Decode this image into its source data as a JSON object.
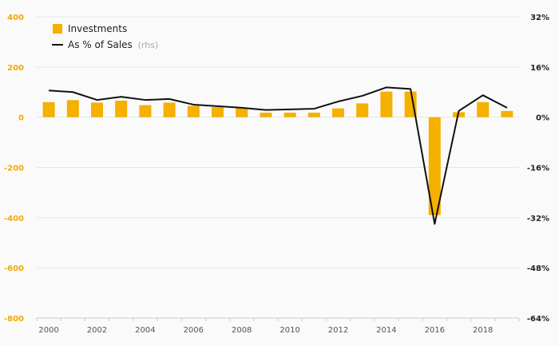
{
  "chart_data": {
    "type": "bar+line",
    "categories": [
      "2000",
      "2001",
      "2002",
      "2003",
      "2004",
      "2005",
      "2006",
      "2007",
      "2008",
      "2009",
      "2010",
      "2011",
      "2012",
      "2013",
      "2014",
      "2015",
      "2016",
      "2017",
      "2018",
      "2019"
    ],
    "x_tick_labels": [
      "2000",
      "2002",
      "2004",
      "2006",
      "2008",
      "2010",
      "2012",
      "2014",
      "2016",
      "2018"
    ],
    "series": [
      {
        "name": "Investments",
        "type": "bar",
        "axis": "left",
        "color": "#f5b000",
        "values": [
          60,
          68,
          58,
          66,
          48,
          58,
          45,
          40,
          38,
          18,
          18,
          18,
          35,
          55,
          102,
          102,
          -390,
          20,
          60,
          25
        ]
      },
      {
        "name": "As % of Sales",
        "note": "(rhs)",
        "type": "line",
        "axis": "right",
        "color": "#111111",
        "values": [
          8.5,
          8.0,
          5.5,
          6.5,
          5.5,
          5.8,
          4.0,
          3.5,
          3.0,
          2.3,
          2.5,
          2.7,
          5.0,
          6.8,
          9.5,
          9.0,
          -34.0,
          2.0,
          7.0,
          3.0
        ]
      }
    ],
    "y_left": {
      "min": -800,
      "max": 400,
      "ticks": [
        400,
        200,
        0,
        -200,
        -400,
        -600,
        -800
      ]
    },
    "y_right": {
      "min": -64,
      "max": 32,
      "ticks": [
        "32%",
        "16%",
        "0%",
        "-16%",
        "-32%",
        "-48%",
        "-64%"
      ]
    },
    "legend": {
      "placement": "top-left",
      "bar_label": "Investments",
      "line_label": "As % of Sales",
      "line_note": "(rhs)"
    },
    "grid": true,
    "colors": {
      "bar": "#f5b000",
      "line": "#111111",
      "left_ticks": "#f5a800",
      "grid": "#e6e6e6"
    }
  }
}
